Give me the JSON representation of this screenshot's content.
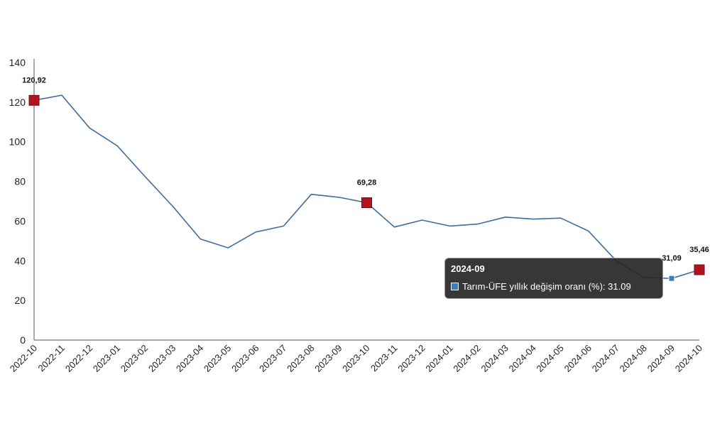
{
  "chart_data": {
    "type": "line",
    "x": [
      "2022-10",
      "2022-11",
      "2022-12",
      "2023-01",
      "2023-02",
      "2023-03",
      "2023-04",
      "2023-05",
      "2023-06",
      "2023-07",
      "2023-08",
      "2023-09",
      "2023-10",
      "2023-11",
      "2023-12",
      "2024-01",
      "2024-02",
      "2024-03",
      "2024-04",
      "2024-05",
      "2024-06",
      "2024-07",
      "2024-08",
      "2024-09",
      "2024-10"
    ],
    "series": [
      {
        "name": "Tarım-ÜFE yıllık değişim oranı (%)",
        "values": [
          120.92,
          123.5,
          107.0,
          98.0,
          82.5,
          67.5,
          51.0,
          46.5,
          54.5,
          57.5,
          73.5,
          72.0,
          69.28,
          57.0,
          60.5,
          57.5,
          58.5,
          62.0,
          61.0,
          61.5,
          55.0,
          40.0,
          31.5,
          31.09,
          35.46
        ],
        "color": "#3c6e9e"
      }
    ],
    "ylim": [
      0,
      140
    ],
    "yticks": [
      0,
      20,
      40,
      60,
      80,
      100,
      120,
      140
    ],
    "grid": false,
    "annotations": [
      {
        "x": "2022-10",
        "value": 120.92,
        "label": "120,92",
        "marker": "square",
        "color": "#b0141c"
      },
      {
        "x": "2023-10",
        "value": 69.28,
        "label": "69,28",
        "marker": "square",
        "color": "#b0141c"
      },
      {
        "x": "2024-09",
        "value": 31.09,
        "label": "31,09",
        "marker": "square-small",
        "color": "#3c7dbf"
      },
      {
        "x": "2024-10",
        "value": 35.46,
        "label": "35,46",
        "marker": "square",
        "color": "#b0141c"
      }
    ],
    "tooltip": {
      "title": "2024-09",
      "text": "Tarım-ÜFE yıllık değişim oranı (%): 31.09",
      "swatch_color": "#3c7dbf"
    }
  }
}
